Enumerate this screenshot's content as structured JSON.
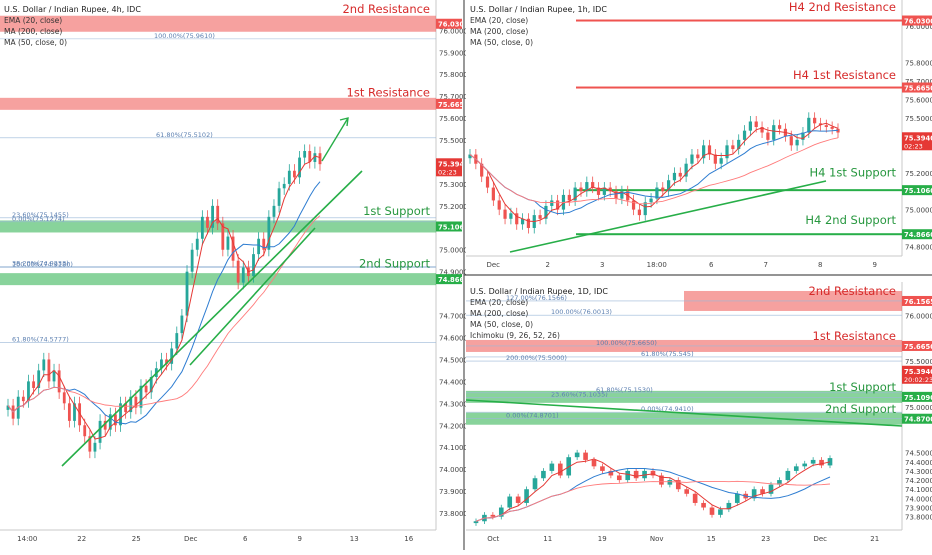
{
  "panels": {
    "p4h": {
      "title": "U.S. Dollar / Indian Rupee, 4h, IDC",
      "indicators": [
        "EMA (20, close)",
        "MA (200, close)",
        "MA (50, close, 0)"
      ],
      "ylim": [
        73.75,
        76.12
      ],
      "yticks": [
        {
          "v": 76.0,
          "t": "76.0000"
        },
        {
          "v": 75.9,
          "t": "75.9000"
        },
        {
          "v": 75.8,
          "t": "75.8000"
        },
        {
          "v": 75.7,
          "t": "75.7000"
        },
        {
          "v": 75.6,
          "t": "75.6000"
        },
        {
          "v": 75.5,
          "t": "75.5000"
        },
        {
          "v": 75.3,
          "t": "75.3000"
        },
        {
          "v": 75.2,
          "t": "75.2000"
        },
        {
          "v": 75.0,
          "t": "75.0000"
        },
        {
          "v": 74.9,
          "t": "74.9000"
        },
        {
          "v": 74.7,
          "t": "74.7000"
        },
        {
          "v": 74.6,
          "t": "74.6000"
        },
        {
          "v": 74.5,
          "t": "74.5000"
        },
        {
          "v": 74.4,
          "t": "74.4000"
        },
        {
          "v": 74.3,
          "t": "74.3000"
        },
        {
          "v": 74.2,
          "t": "74.2000"
        },
        {
          "v": 74.1,
          "t": "74.1000"
        },
        {
          "v": 74.0,
          "t": "74.0000"
        },
        {
          "v": 73.9,
          "t": "73.9000"
        },
        {
          "v": 73.8,
          "t": "73.8000"
        }
      ],
      "xticks": [
        "14:00",
        "22",
        "25",
        "Dec",
        "6",
        "9",
        "13",
        "16"
      ],
      "price_tags": [
        {
          "v": 76.03,
          "t": "76.0300",
          "kind": "resistance"
        },
        {
          "v": 75.665,
          "t": "75.6650",
          "kind": "resistance"
        },
        {
          "v": 75.394,
          "t": "75.3940",
          "kind": "current",
          "sub": "02:23"
        },
        {
          "v": 75.106,
          "t": "75.1060",
          "kind": "support"
        },
        {
          "v": 74.866,
          "t": "74.8660",
          "kind": "support"
        }
      ],
      "labels": [
        {
          "t": "2nd Resistance",
          "v": 76.07,
          "kind": "resistance"
        },
        {
          "t": "1st Resistance",
          "v": 75.69,
          "kind": "resistance"
        },
        {
          "t": "1st Support",
          "v": 75.15,
          "kind": "support"
        },
        {
          "t": "2nd Support",
          "v": 74.91,
          "kind": "support"
        }
      ],
      "fib": [
        {
          "t": "100.00%(75.9610)",
          "v": 75.961
        },
        {
          "t": "61.80%(75.5102)",
          "v": 75.5102
        },
        {
          "t": "23.60%(75.1455)",
          "v": 75.1455
        },
        {
          "t": "0.00%(75.1274)",
          "v": 75.1274
        },
        {
          "t": "38.20%(74.9233)",
          "v": 74.9233
        },
        {
          "t": "100.00%(74.9180)",
          "v": 74.918
        },
        {
          "t": "61.80%(74.5777)",
          "v": 74.5777
        }
      ],
      "closes": [
        74.29,
        74.23,
        74.33,
        74.31,
        74.4,
        74.37,
        74.45,
        74.5,
        74.4,
        74.45,
        74.35,
        74.3,
        74.22,
        74.3,
        74.2,
        74.15,
        74.08,
        74.12,
        74.22,
        74.18,
        74.25,
        74.2,
        74.3,
        74.26,
        74.33,
        74.28,
        74.38,
        74.35,
        74.42,
        74.46,
        74.5,
        74.48,
        74.55,
        74.62,
        74.7,
        74.9,
        75.0,
        75.05,
        75.15,
        75.1,
        75.2,
        75.12,
        75.0,
        75.06,
        74.95,
        74.85,
        74.92,
        74.88,
        74.98,
        75.05,
        75.0,
        75.15,
        75.2,
        75.28,
        75.3,
        75.36,
        75.33,
        75.42,
        75.45,
        75.4,
        75.44,
        75.39
      ]
    },
    "p1h": {
      "title": "U.S. Dollar / Indian Rupee, 1h, IDC",
      "indicators": [
        "EMA (20, close)",
        "MA (200, close)",
        "MA (50, close, 0)"
      ],
      "ylim": [
        74.78,
        76.12
      ],
      "yticks": [
        {
          "v": 76.0,
          "t": "76.0000"
        },
        {
          "v": 75.8,
          "t": "75.8000"
        },
        {
          "v": 75.7,
          "t": "75.7000"
        },
        {
          "v": 75.6,
          "t": "75.6000"
        },
        {
          "v": 75.5,
          "t": "75.5000"
        },
        {
          "v": 75.2,
          "t": "75.2000"
        },
        {
          "v": 75.0,
          "t": "75.0000"
        },
        {
          "v": 74.8,
          "t": "74.8000"
        }
      ],
      "xticks": [
        "Dec",
        "2",
        "3",
        "18:00",
        "6",
        "7",
        "8",
        "9"
      ],
      "price_tags": [
        {
          "v": 76.03,
          "t": "76.0300",
          "kind": "resistance"
        },
        {
          "v": 75.665,
          "t": "75.6650",
          "kind": "resistance"
        },
        {
          "v": 75.394,
          "t": "75.3940",
          "kind": "current",
          "sub": "02:23"
        },
        {
          "v": 75.106,
          "t": "75.1060",
          "kind": "support"
        },
        {
          "v": 74.866,
          "t": "74.8660",
          "kind": "support"
        }
      ],
      "labels": [
        {
          "t": "H4 2nd Resistance",
          "v": 76.07,
          "kind": "resistance"
        },
        {
          "t": "H4 1st Resistance",
          "v": 75.7,
          "kind": "resistance"
        },
        {
          "t": "H4 1st Support",
          "v": 75.17,
          "kind": "support"
        },
        {
          "t": "H4 2nd Support",
          "v": 74.91,
          "kind": "support"
        }
      ],
      "closes": [
        75.3,
        75.25,
        75.18,
        75.12,
        75.05,
        75.0,
        74.95,
        74.98,
        74.92,
        74.95,
        74.9,
        74.97,
        74.95,
        75.02,
        75.05,
        75.0,
        75.08,
        75.05,
        75.12,
        75.1,
        75.15,
        75.12,
        75.08,
        75.12,
        75.1,
        75.06,
        75.1,
        75.05,
        75.0,
        74.97,
        75.04,
        75.06,
        75.12,
        75.1,
        75.16,
        75.2,
        75.18,
        75.25,
        75.3,
        75.28,
        75.35,
        75.3,
        75.25,
        75.28,
        75.35,
        75.33,
        75.38,
        75.43,
        75.48,
        75.45,
        75.42,
        75.38,
        75.46,
        75.44,
        75.4,
        75.35,
        75.38,
        75.42,
        75.5,
        75.47,
        75.46,
        75.45,
        75.44,
        75.42
      ]
    },
    "p1d": {
      "title": "U.S. Dollar / Indian Rupee, 1D, IDC",
      "indicators": [
        "EMA (20, close)",
        "MA (200, close)",
        "MA (50, close, 0)",
        "Ichimoku (9, 26, 52, 26)"
      ],
      "ylim": [
        73.72,
        76.32
      ],
      "yticks": [
        {
          "v": 76.0,
          "t": "76.0000"
        },
        {
          "v": 75.5,
          "t": "75.5000"
        },
        {
          "v": 75.0,
          "t": "75.0000"
        },
        {
          "v": 74.5,
          "t": "74.5000"
        },
        {
          "v": 74.4,
          "t": "74.4000"
        },
        {
          "v": 74.3,
          "t": "74.3000"
        },
        {
          "v": 74.2,
          "t": "74.2000"
        },
        {
          "v": 74.1,
          "t": "74.1000"
        },
        {
          "v": 74.0,
          "t": "74.0000"
        },
        {
          "v": 73.9,
          "t": "73.9000"
        },
        {
          "v": 73.8,
          "t": "73.8000"
        }
      ],
      "xticks": [
        "Oct",
        "11",
        "19",
        "Nov",
        "15",
        "23",
        "Dec",
        "21"
      ],
      "price_tags": [
        {
          "v": 76.1565,
          "t": "76.1565",
          "kind": "resistance"
        },
        {
          "v": 75.665,
          "t": "75.6650",
          "kind": "resistance"
        },
        {
          "v": 75.394,
          "t": "75.3940",
          "kind": "current",
          "sub": "20:02:23"
        },
        {
          "v": 75.109,
          "t": "75.1090",
          "kind": "support"
        },
        {
          "v": 74.87,
          "t": "74.8700",
          "kind": "support"
        }
      ],
      "labels": [
        {
          "t": "2nd Resistance",
          "v": 76.2,
          "kind": "resistance"
        },
        {
          "t": "1st Resistance",
          "v": 75.71,
          "kind": "resistance"
        },
        {
          "t": "1st Support",
          "v": 75.15,
          "kind": "support"
        },
        {
          "t": "2nd Support",
          "v": 74.91,
          "kind": "support"
        }
      ],
      "fib": [
        {
          "t": "127.00%(76.1566)",
          "v": 76.1566
        },
        {
          "t": "100.00%(76.0013)",
          "v": 76.0013
        },
        {
          "t": "100.00%(75.6650)",
          "v": 75.665
        },
        {
          "t": "61.80%(75.545)",
          "v": 75.545
        },
        {
          "t": "200.00%(75.5000)",
          "v": 75.5
        },
        {
          "t": "23.60%(75.1035)",
          "v": 75.1035
        },
        {
          "t": "61.80%(75.1530)",
          "v": 75.153
        },
        {
          "t": "0.00%(74.9410)",
          "v": 74.941
        },
        {
          "t": "0.00%(74.8701)",
          "v": 74.8701
        }
      ],
      "closes": [
        73.75,
        73.82,
        73.8,
        73.9,
        74.02,
        73.95,
        74.1,
        74.22,
        74.3,
        74.38,
        74.25,
        74.45,
        74.5,
        74.42,
        74.35,
        74.3,
        74.25,
        74.2,
        74.3,
        74.22,
        74.3,
        74.25,
        74.15,
        74.2,
        74.1,
        74.05,
        73.95,
        73.9,
        73.82,
        73.88,
        73.95,
        74.05,
        74.0,
        74.1,
        74.05,
        74.15,
        74.2,
        74.3,
        74.35,
        74.38,
        74.42,
        74.36,
        74.44
      ]
    }
  },
  "series_colors": {
    "candle_up": "#26a69a",
    "candle_down": "#ef5350",
    "ema": "#e53935",
    "ma200": "#ff7b7b",
    "ma50": "#2e7dd1",
    "resistance": "#ef5350",
    "support": "#27ae48",
    "current": "#e53935"
  }
}
